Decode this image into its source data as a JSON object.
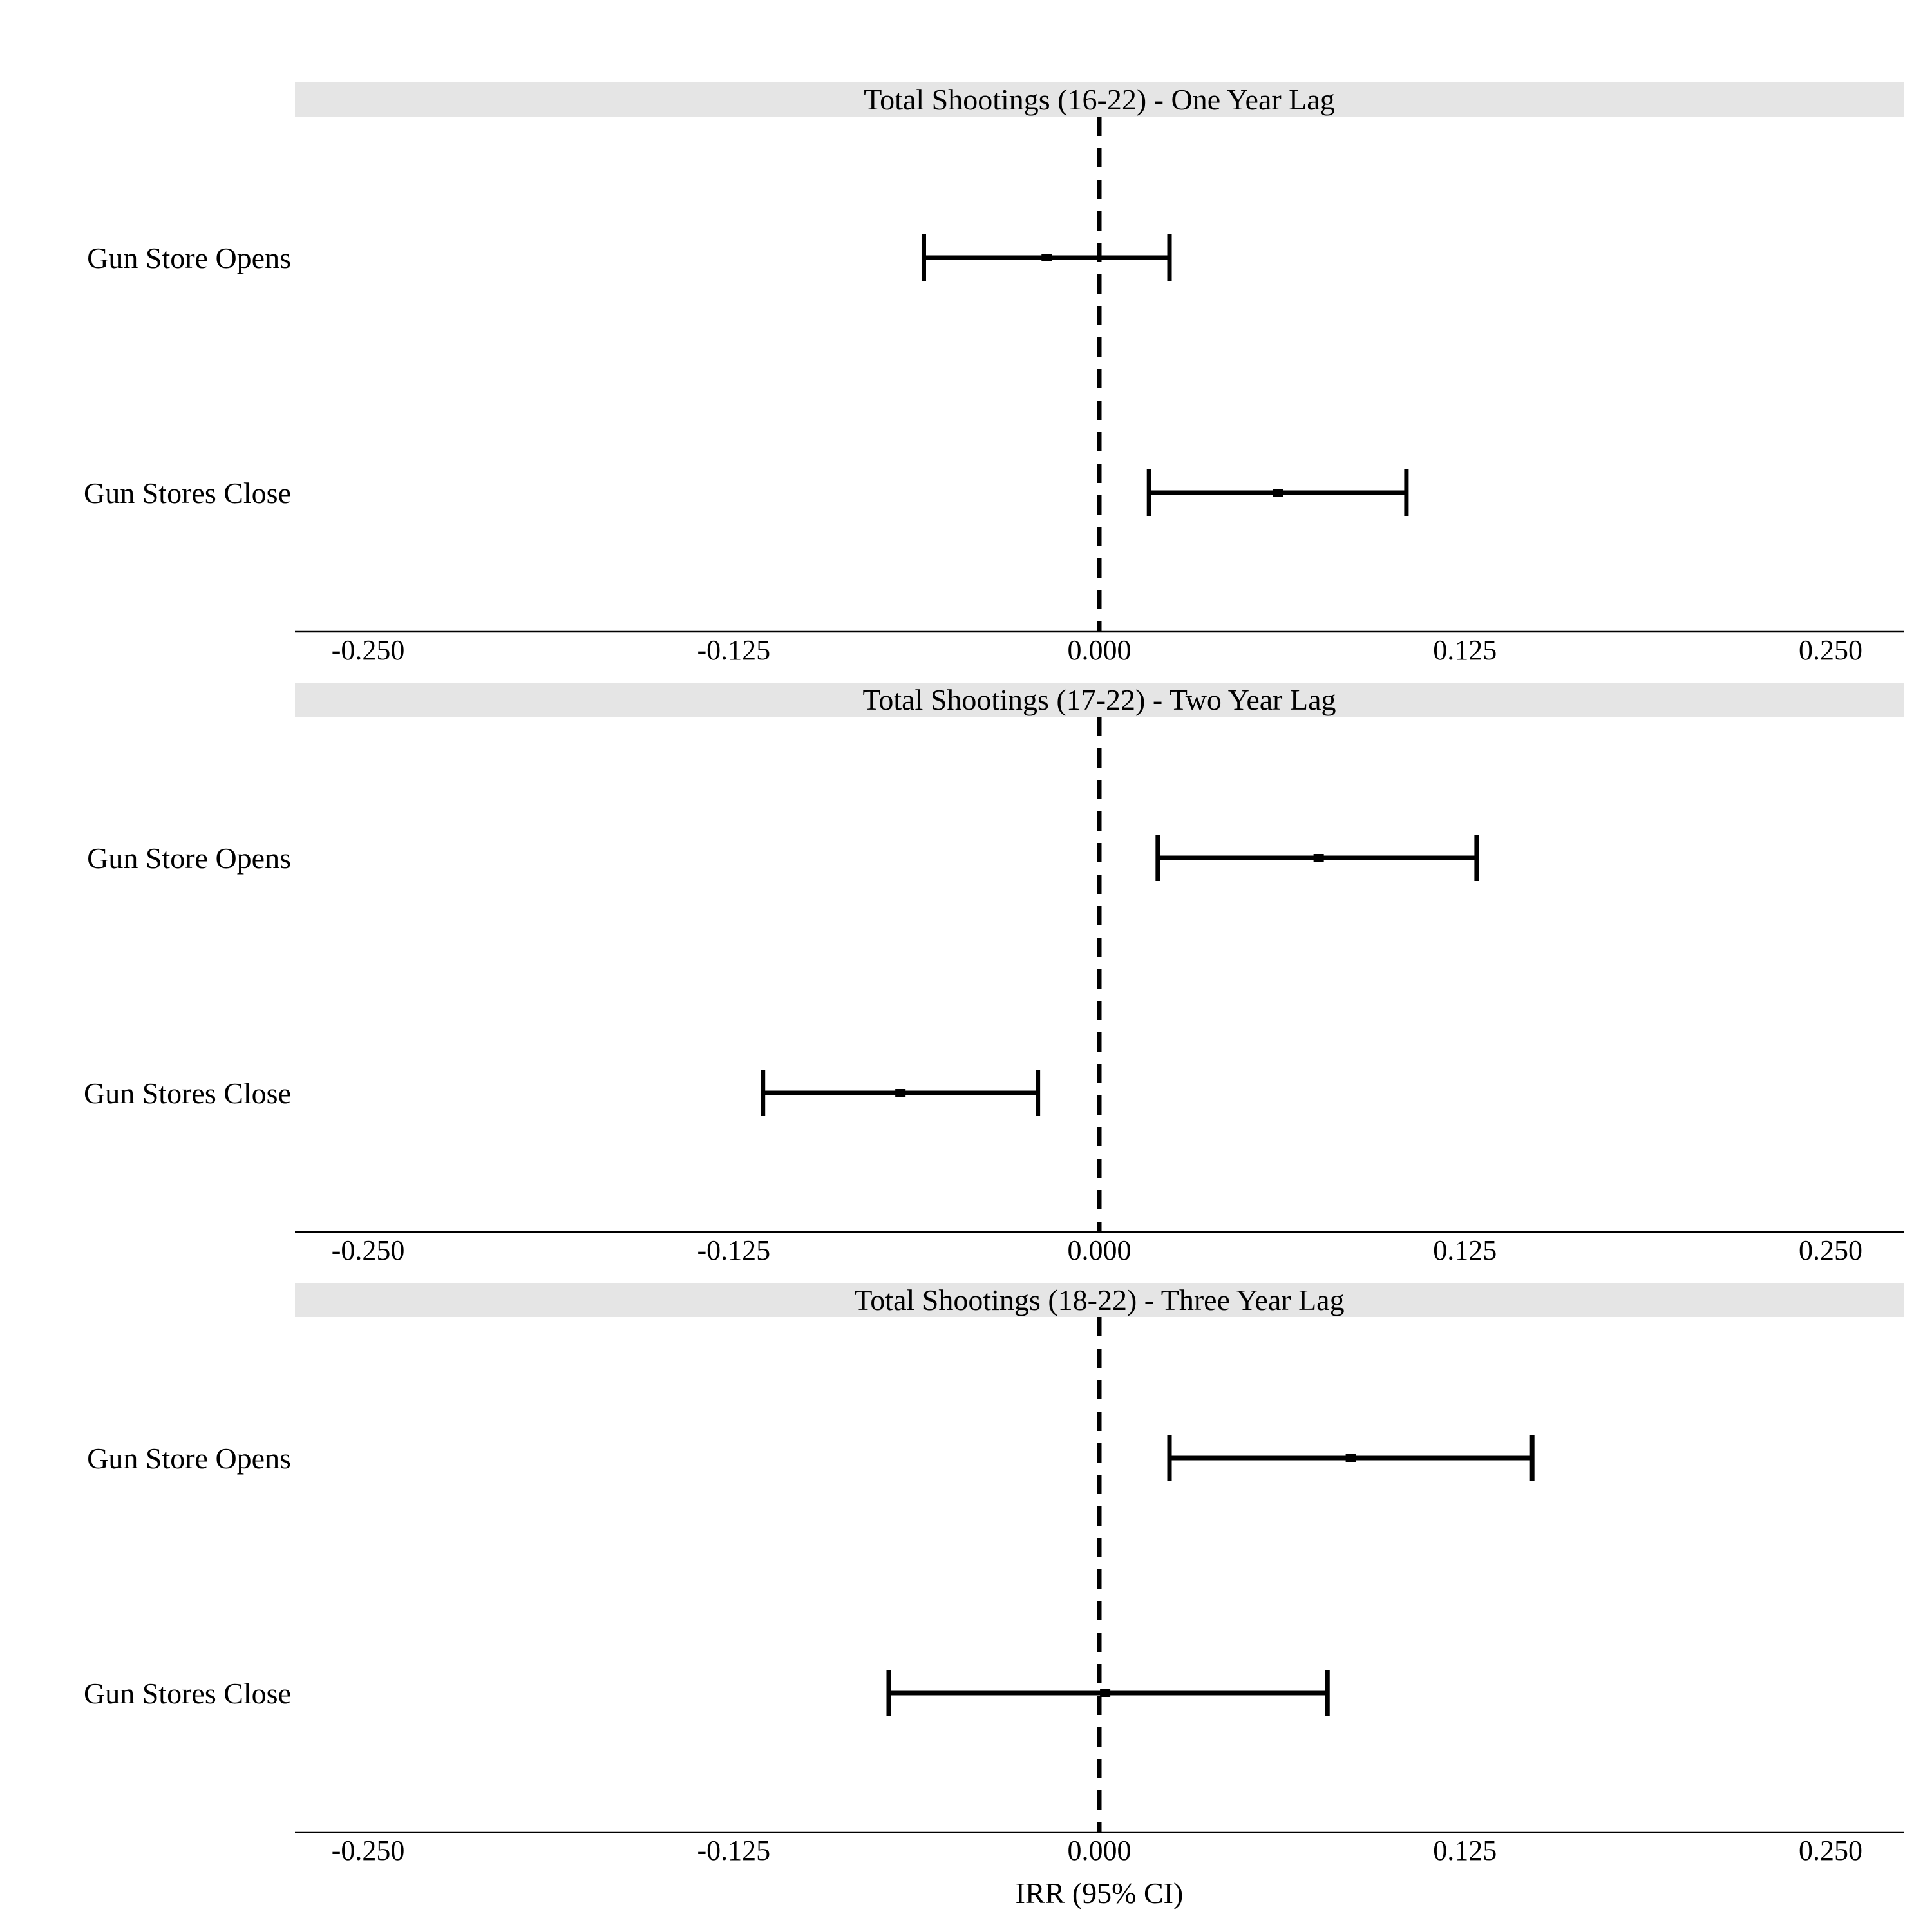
{
  "chart_data": {
    "type": "forest",
    "xlabel": "IRR (95% CI)",
    "xlim": [
      -0.275,
      0.275
    ],
    "x_ticks": [
      -0.25,
      -0.125,
      0.0,
      0.125,
      0.25
    ],
    "x_tick_labels": [
      "-0.250",
      "-0.125",
      "0.000",
      "0.125",
      "0.250"
    ],
    "reference_line": 0.0,
    "grid": false,
    "panels": [
      {
        "title": "Total Shootings (16-22) - One Year Lag",
        "rows": [
          {
            "label": "Gun Store Opens",
            "estimate": -0.018,
            "lower": -0.06,
            "upper": 0.024
          },
          {
            "label": "Gun Stores Close",
            "estimate": 0.061,
            "lower": 0.017,
            "upper": 0.105
          }
        ]
      },
      {
        "title": "Total Shootings (17-22) - Two Year Lag",
        "rows": [
          {
            "label": "Gun Store Opens",
            "estimate": 0.075,
            "lower": 0.02,
            "upper": 0.129
          },
          {
            "label": "Gun Stores Close",
            "estimate": -0.068,
            "lower": -0.115,
            "upper": -0.021
          }
        ]
      },
      {
        "title": "Total Shootings (18-22) - Three Year Lag",
        "rows": [
          {
            "label": "Gun Store Opens",
            "estimate": 0.086,
            "lower": 0.024,
            "upper": 0.148
          },
          {
            "label": "Gun Stores Close",
            "estimate": 0.002,
            "lower": -0.072,
            "upper": 0.078
          }
        ]
      }
    ]
  }
}
